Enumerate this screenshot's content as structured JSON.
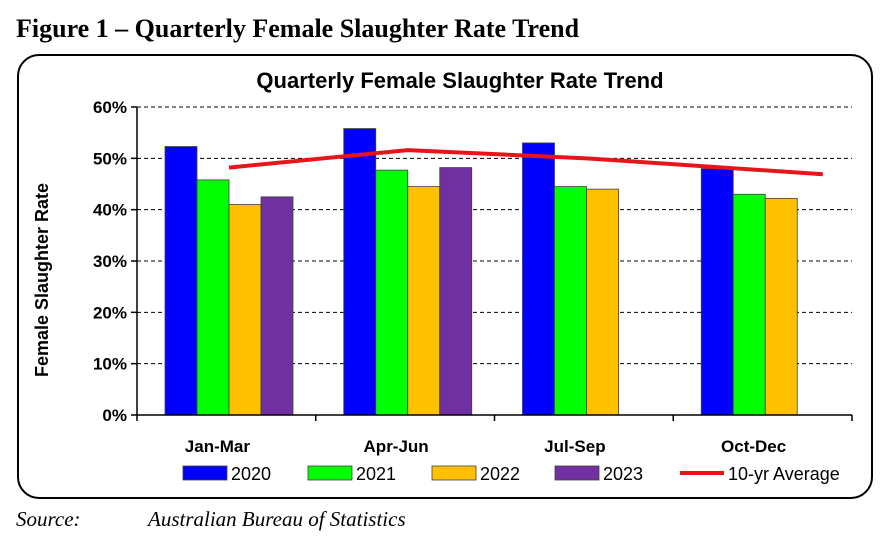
{
  "figure_heading": "Figure 1 – Quarterly Female Slaughter Rate Trend",
  "source": {
    "label": "Source:",
    "text": "Australian Bureau of Statistics"
  },
  "chart_data": {
    "type": "bar",
    "title": "Quarterly Female Slaughter Rate Trend",
    "xlabel": "",
    "ylabel": "Female Slaughter Rate",
    "ylim": [
      0,
      60
    ],
    "yticks": [
      0,
      10,
      20,
      30,
      40,
      50,
      60
    ],
    "ytick_labels": [
      "0%",
      "10%",
      "20%",
      "30%",
      "40%",
      "50%",
      "60%"
    ],
    "grid": "horizontal dashed",
    "legend_position": "bottom",
    "categories": [
      "Jan-Mar",
      "Apr-Jun",
      "Jul-Sep",
      "Oct-Dec"
    ],
    "series": [
      {
        "name": "2020",
        "type": "bar",
        "color": "#0000ff",
        "values": [
          52.3,
          55.8,
          53.0,
          48.0
        ]
      },
      {
        "name": "2021",
        "type": "bar",
        "color": "#00ff00",
        "values": [
          45.8,
          47.7,
          44.5,
          43.0
        ]
      },
      {
        "name": "2022",
        "type": "bar",
        "color": "#ffc000",
        "values": [
          41.0,
          44.5,
          44.0,
          42.2
        ]
      },
      {
        "name": "2023",
        "type": "bar",
        "color": "#7030a0",
        "values": [
          42.5,
          48.2,
          null,
          null
        ]
      },
      {
        "name": "10-yr Average",
        "type": "line",
        "color": "#e8141a",
        "values": [
          48.2,
          51.6,
          50.0,
          46.9
        ]
      }
    ]
  }
}
